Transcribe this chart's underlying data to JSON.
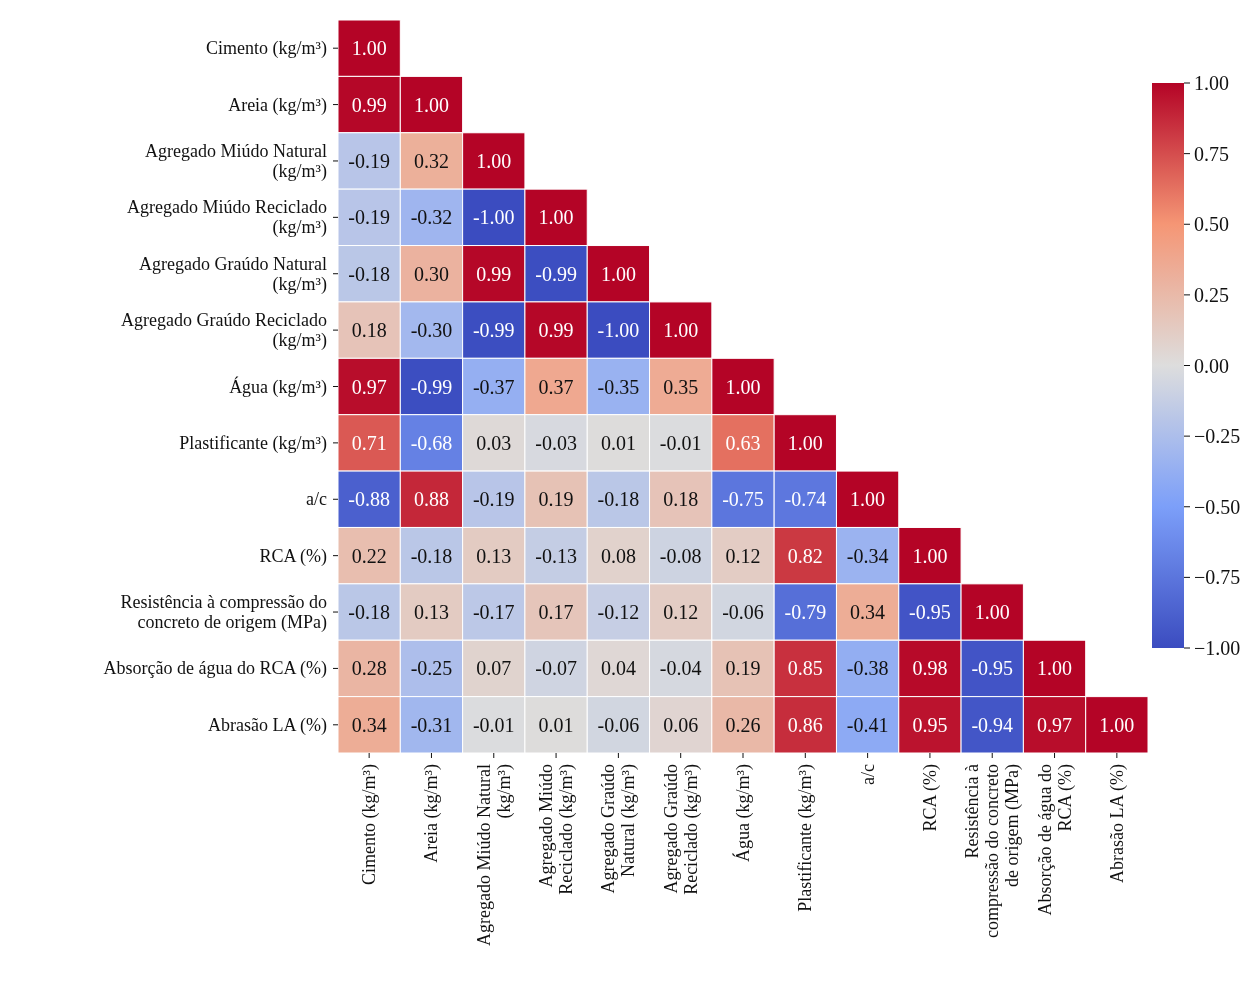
{
  "chart_data": {
    "type": "heatmap",
    "categories": [
      "Cimento (kg/m³)",
      "Areia (kg/m³)",
      "Agregado Miúdo Natural (kg/m³)",
      "Agregado Miúdo Reciclado (kg/m³)",
      "Agregado Graúdo Natural (kg/m³)",
      "Agregado Graúdo Reciclado (kg/m³)",
      "Água (kg/m³)",
      "Plastificante (kg/m³)",
      "a/c",
      "RCA (%)",
      "Resistência à compressão do concreto de origem (MPa)",
      "Absorção de água do RCA (%)",
      "Abrasão LA (%)"
    ],
    "y_categories": [
      "Cimento (kg/m³)",
      "Areia (kg/m³)",
      "Agregado Miúdo Natural (kg/m³)",
      "Agregado Miúdo Reciclado (kg/m³)",
      "Agregado Graúdo Natural (kg/m³)",
      "Agregado Graúdo Reciclado (kg/m³)",
      "Água (kg/m³)",
      "Plastificante (kg/m³)",
      "a/c",
      "RCA (%)",
      "Resistência à compressão do concreto de origem (MPa)",
      "Absorção de água do RCA (%)",
      "Abrasão LA (%)"
    ],
    "cells": [
      [
        1.0,
        null,
        null,
        null,
        null,
        null,
        null,
        null,
        null,
        null,
        null,
        null,
        null
      ],
      [
        0.99,
        1.0,
        null,
        null,
        null,
        null,
        null,
        null,
        null,
        null,
        null,
        null,
        null
      ],
      [
        -0.19,
        0.32,
        1.0,
        null,
        null,
        null,
        null,
        null,
        null,
        null,
        null,
        null,
        null
      ],
      [
        -0.19,
        -0.32,
        -1.0,
        1.0,
        null,
        null,
        null,
        null,
        null,
        null,
        null,
        null,
        null
      ],
      [
        -0.18,
        0.3,
        0.99,
        -0.99,
        1.0,
        null,
        null,
        null,
        null,
        null,
        null,
        null,
        null
      ],
      [
        0.18,
        -0.3,
        -0.99,
        0.99,
        -1.0,
        1.0,
        null,
        null,
        null,
        null,
        null,
        null,
        null
      ],
      [
        0.97,
        -0.99,
        -0.37,
        0.37,
        -0.35,
        0.35,
        1.0,
        null,
        null,
        null,
        null,
        null,
        null
      ],
      [
        0.71,
        -0.68,
        0.03,
        -0.03,
        0.01,
        -0.01,
        0.63,
        1.0,
        null,
        null,
        null,
        null,
        null
      ],
      [
        -0.88,
        0.88,
        -0.19,
        0.19,
        -0.18,
        0.18,
        -0.75,
        -0.74,
        1.0,
        null,
        null,
        null,
        null
      ],
      [
        0.22,
        -0.18,
        0.13,
        -0.13,
        0.08,
        -0.08,
        0.12,
        0.82,
        -0.34,
        1.0,
        null,
        null,
        null
      ],
      [
        -0.18,
        0.13,
        -0.17,
        0.17,
        -0.12,
        0.12,
        -0.06,
        -0.79,
        0.34,
        -0.95,
        1.0,
        null,
        null
      ],
      [
        0.28,
        -0.25,
        0.07,
        -0.07,
        0.04,
        -0.04,
        0.19,
        0.85,
        -0.38,
        0.98,
        -0.95,
        1.0,
        null
      ],
      [
        0.34,
        -0.31,
        -0.01,
        0.01,
        -0.06,
        0.06,
        0.26,
        0.86,
        -0.41,
        0.95,
        -0.94,
        0.97,
        1.0
      ]
    ],
    "clim": [
      -1,
      1
    ],
    "cticks": [
      {
        "value": 1,
        "label": "1.00"
      },
      {
        "value": 0.75,
        "label": "0.75"
      },
      {
        "value": 0.5,
        "label": "0.50"
      },
      {
        "value": 0.25,
        "label": "0.25"
      },
      {
        "value": 0,
        "label": "0.00"
      },
      {
        "value": -0.25,
        "label": "−0.25"
      },
      {
        "value": -0.5,
        "label": "−0.50"
      },
      {
        "value": -0.75,
        "label": "−0.75"
      },
      {
        "value": -1,
        "label": "−1.00"
      }
    ],
    "cell_labels": [
      [
        "1.00",
        null,
        null,
        null,
        null,
        null,
        null,
        null,
        null,
        null,
        null,
        null,
        null
      ],
      [
        "0.99",
        "1.00",
        null,
        null,
        null,
        null,
        null,
        null,
        null,
        null,
        null,
        null,
        null
      ],
      [
        "-0.19",
        "0.32",
        "1.00",
        null,
        null,
        null,
        null,
        null,
        null,
        null,
        null,
        null,
        null
      ],
      [
        "-0.19",
        "-0.32",
        "-1.00",
        "1.00",
        null,
        null,
        null,
        null,
        null,
        null,
        null,
        null,
        null
      ],
      [
        "-0.18",
        "0.30",
        "0.99",
        "-0.99",
        "1.00",
        null,
        null,
        null,
        null,
        null,
        null,
        null,
        null
      ],
      [
        "0.18",
        "-0.30",
        "-0.99",
        "0.99",
        "-1.00",
        "1.00",
        null,
        null,
        null,
        null,
        null,
        null,
        null
      ],
      [
        "0.97",
        "-0.99",
        "-0.37",
        "0.37",
        "-0.35",
        "0.35",
        "1.00",
        null,
        null,
        null,
        null,
        null,
        null
      ],
      [
        "0.71",
        "-0.68",
        "0.03",
        "-0.03",
        "0.01",
        "-0.01",
        "0.63",
        "1.00",
        null,
        null,
        null,
        null,
        null
      ],
      [
        "-0.88",
        "0.88",
        "-0.19",
        "0.19",
        "-0.18",
        "0.18",
        "-0.75",
        "-0.74",
        "1.00",
        null,
        null,
        null,
        null
      ],
      [
        "0.22",
        "-0.18",
        "0.13",
        "-0.13",
        "0.08",
        "-0.08",
        "0.12",
        "0.82",
        "-0.34",
        "1.00",
        null,
        null,
        null
      ],
      [
        "-0.18",
        "0.13",
        "-0.17",
        "0.17",
        "-0.12",
        "0.12",
        "-0.06",
        "-0.79",
        "0.34",
        "-0.95",
        "1.00",
        null,
        null
      ],
      [
        "0.28",
        "-0.25",
        "0.07",
        "-0.07",
        "0.04",
        "-0.04",
        "0.19",
        "0.85",
        "-0.38",
        "0.98",
        "-0.95",
        "1.00",
        null
      ],
      [
        "0.34",
        "-0.31",
        "-0.01",
        "0.01",
        "-0.06",
        "0.06",
        "0.26",
        "0.86",
        "-0.41",
        "0.95",
        "-0.94",
        "0.97",
        "1.00"
      ]
    ]
  }
}
